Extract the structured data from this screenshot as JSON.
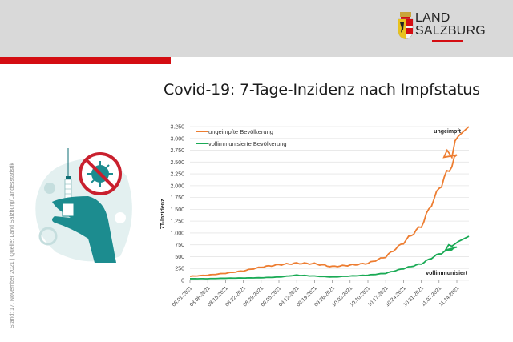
{
  "header": {
    "logo_line1": "LAND",
    "logo_line2": "SALZBURG",
    "brand_red": "#d40d12",
    "band_gray": "#d9d9d9"
  },
  "title": "Covid-19: 7-Tage-Inzidenz nach Impfstatus",
  "side_note": "Stand: 17. November 2021 | Quelle: Land Salzburg/Landesstatistik",
  "illustration": {
    "icon": "vaccine-syringe-hand-no-virus-icon",
    "color": "#1c8c8f"
  },
  "chart_data": {
    "type": "line",
    "title": "Covid-19: 7-Tage-Inzidenz nach Impfstatus",
    "xlabel": "",
    "ylabel": "7T-Inzidenz",
    "ylim": [
      0,
      3250
    ],
    "yticks": [
      "0",
      "250",
      "500",
      "750",
      "1.000",
      "1.250",
      "1.500",
      "1.750",
      "2.000",
      "2.250",
      "2.500",
      "2.750",
      "3.000",
      "3.250"
    ],
    "grid": true,
    "legend_position": "top-left",
    "categories": [
      "08.01.2021",
      "08.08.2021",
      "08.15.2021",
      "08.22.2021",
      "08.29.2021",
      "09.05.2021",
      "09.12.2021",
      "09.19.2021",
      "09.26.2021",
      "10.03.2021",
      "10.10.2021",
      "10.17.2021",
      "10.24.2021",
      "10.31.2021",
      "11.07.2021",
      "11.14.2021"
    ],
    "series": [
      {
        "name": "ungeimpfte Bevölkerung",
        "end_label": "ungeimpft",
        "color": "#ed7d31",
        "values": [
          85,
          110,
          150,
          200,
          280,
          330,
          360,
          350,
          290,
          320,
          360,
          500,
          800,
          1150,
          1950,
          2650
        ],
        "last_value": 3250
      },
      {
        "name": "vollimmunisierte Bevölkerung",
        "end_label": "vollimmunisiert",
        "color": "#1aaa55",
        "values": [
          35,
          35,
          45,
          50,
          55,
          70,
          110,
          90,
          70,
          90,
          110,
          150,
          250,
          350,
          560,
          700
        ],
        "last_value": 930
      }
    ]
  }
}
